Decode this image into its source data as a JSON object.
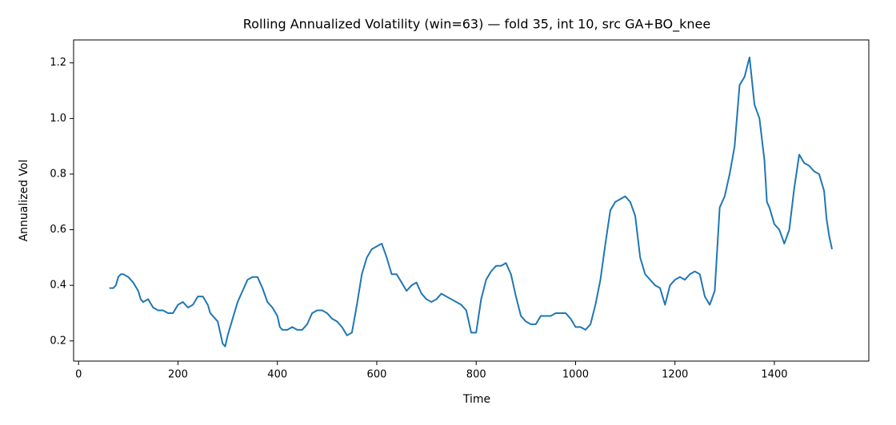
{
  "chart_data": {
    "type": "line",
    "title": "Rolling Annualized Volatility (win=63) — fold 35, int 10, src GA+BO_knee",
    "xlabel": "Time",
    "ylabel": "Annualized Vol",
    "x": [
      62,
      70,
      75,
      80,
      85,
      90,
      100,
      110,
      120,
      125,
      130,
      140,
      150,
      160,
      170,
      180,
      190,
      200,
      210,
      220,
      230,
      240,
      250,
      260,
      265,
      270,
      280,
      290,
      295,
      300,
      310,
      320,
      330,
      340,
      350,
      360,
      370,
      380,
      390,
      400,
      405,
      410,
      420,
      430,
      440,
      450,
      460,
      470,
      480,
      490,
      500,
      510,
      520,
      530,
      540,
      550,
      560,
      570,
      580,
      590,
      600,
      610,
      620,
      630,
      640,
      650,
      660,
      670,
      680,
      690,
      700,
      710,
      720,
      730,
      740,
      750,
      760,
      770,
      780,
      790,
      800,
      810,
      820,
      830,
      840,
      850,
      860,
      870,
      880,
      890,
      900,
      910,
      920,
      930,
      940,
      950,
      960,
      970,
      980,
      990,
      1000,
      1010,
      1020,
      1030,
      1040,
      1050,
      1060,
      1070,
      1080,
      1090,
      1100,
      1110,
      1120,
      1130,
      1140,
      1150,
      1160,
      1170,
      1180,
      1190,
      1200,
      1210,
      1220,
      1230,
      1240,
      1250,
      1260,
      1270,
      1280,
      1290,
      1300,
      1310,
      1320,
      1330,
      1340,
      1350,
      1360,
      1370,
      1380,
      1385,
      1390,
      1400,
      1410,
      1420,
      1430,
      1440,
      1450,
      1460,
      1470,
      1480,
      1490,
      1500,
      1505,
      1510,
      1516
    ],
    "series": [
      {
        "name": "vol",
        "color": "#1f77b4",
        "values": [
          0.39,
          0.39,
          0.4,
          0.43,
          0.44,
          0.44,
          0.43,
          0.41,
          0.38,
          0.35,
          0.34,
          0.35,
          0.32,
          0.31,
          0.31,
          0.3,
          0.3,
          0.33,
          0.34,
          0.32,
          0.33,
          0.36,
          0.36,
          0.33,
          0.3,
          0.29,
          0.27,
          0.19,
          0.18,
          0.22,
          0.28,
          0.34,
          0.38,
          0.42,
          0.43,
          0.43,
          0.39,
          0.34,
          0.32,
          0.29,
          0.25,
          0.24,
          0.24,
          0.25,
          0.24,
          0.24,
          0.26,
          0.3,
          0.31,
          0.31,
          0.3,
          0.28,
          0.27,
          0.25,
          0.22,
          0.23,
          0.33,
          0.44,
          0.5,
          0.53,
          0.54,
          0.55,
          0.5,
          0.44,
          0.44,
          0.41,
          0.38,
          0.4,
          0.41,
          0.37,
          0.35,
          0.34,
          0.35,
          0.37,
          0.36,
          0.35,
          0.34,
          0.33,
          0.31,
          0.23,
          0.23,
          0.35,
          0.42,
          0.45,
          0.47,
          0.47,
          0.48,
          0.44,
          0.36,
          0.29,
          0.27,
          0.26,
          0.26,
          0.29,
          0.29,
          0.29,
          0.3,
          0.3,
          0.3,
          0.28,
          0.25,
          0.25,
          0.24,
          0.26,
          0.33,
          0.42,
          0.55,
          0.67,
          0.7,
          0.71,
          0.72,
          0.7,
          0.65,
          0.5,
          0.44,
          0.42,
          0.4,
          0.39,
          0.33,
          0.4,
          0.42,
          0.43,
          0.42,
          0.44,
          0.45,
          0.44,
          0.36,
          0.33,
          0.38,
          0.68,
          0.72,
          0.8,
          0.9,
          1.12,
          1.15,
          1.22,
          1.05,
          1.0,
          0.85,
          0.7,
          0.68,
          0.62,
          0.6,
          0.55,
          0.6,
          0.75,
          0.87,
          0.84,
          0.83,
          0.81,
          0.8,
          0.74,
          0.64,
          0.58,
          0.53
        ]
      }
    ],
    "xlim": [
      -10,
      1590
    ],
    "ylim": [
      0.1275,
      1.2825
    ],
    "xticks": [
      0,
      200,
      400,
      600,
      800,
      1000,
      1200,
      1400
    ],
    "yticks": [
      0.2,
      0.4,
      0.6,
      0.8,
      1.0,
      1.2
    ],
    "grid": false
  }
}
